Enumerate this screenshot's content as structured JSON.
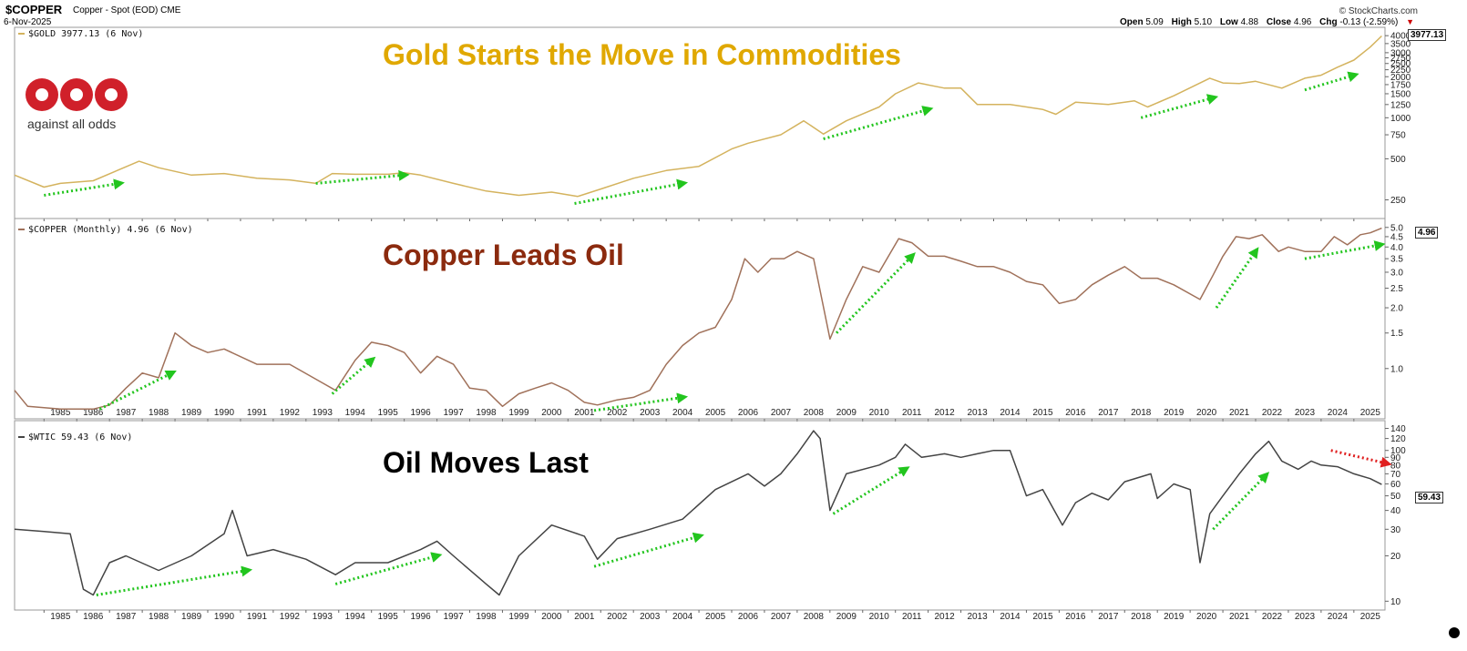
{
  "header": {
    "symbol": "$COPPER",
    "name": "Copper - Spot (EOD)",
    "exchange": "CME",
    "date": "6-Nov-2025",
    "brand": "© StockCharts.com",
    "ohlc": {
      "open_label": "Open",
      "open": "5.09",
      "high_label": "High",
      "high": "5.10",
      "low_label": "Low",
      "low": "4.88",
      "close_label": "Close",
      "close": "4.96",
      "chg_label": "Chg",
      "chg": "-0.13 (-2.59%)"
    }
  },
  "logo": {
    "text": "against all odds",
    "color": "#d0202a"
  },
  "panels": [
    {
      "id": "gold",
      "legend": "$GOLD 3977.13 (6 Nov)",
      "annotation": "Gold Starts the Move in Commodities",
      "annotation_color": "#e0a800",
      "price_tag": "3977.13",
      "line_color": "#d4b35e",
      "yticks": [
        "4000",
        "3500",
        "3000",
        "2750",
        "2500",
        "2250",
        "2000",
        "1750",
        "1500",
        "1250",
        "1000",
        "750",
        "500",
        "250"
      ]
    },
    {
      "id": "copper",
      "legend": "$COPPER (Monthly) 4.96 (6 Nov)",
      "annotation": "Copper Leads Oil",
      "annotation_color": "#8b2a0e",
      "price_tag": "4.96",
      "line_color": "#a0715a",
      "yticks": [
        "5.0",
        "4.5",
        "4.0",
        "3.5",
        "3.0",
        "2.5",
        "2.0",
        "1.5",
        "1.0"
      ]
    },
    {
      "id": "oil",
      "legend": "$WTIC 59.43 (6 Nov)",
      "annotation": "Oil Moves Last",
      "annotation_color": "#000000",
      "price_tag": "59.43",
      "line_color": "#444444",
      "yticks": [
        "140",
        "120",
        "100",
        "90",
        "80",
        "70",
        "60",
        "50",
        "40",
        "30",
        "20",
        "10"
      ]
    }
  ],
  "x_labels": [
    "1985",
    "1986",
    "1987",
    "1988",
    "1989",
    "1990",
    "1991",
    "1992",
    "1993",
    "1994",
    "1995",
    "1996",
    "1997",
    "1998",
    "1999",
    "2000",
    "2001",
    "2002",
    "2003",
    "2004",
    "2005",
    "2006",
    "2007",
    "2008",
    "2009",
    "2010",
    "2011",
    "2012",
    "2013",
    "2014",
    "2015",
    "2016",
    "2017",
    "2018",
    "2019",
    "2020",
    "2021",
    "2022",
    "2023",
    "2024",
    "2025"
  ],
  "chart_data": [
    {
      "type": "line",
      "title": "$GOLD",
      "log_scale": true,
      "ylim": [
        200,
        4200
      ],
      "series": [
        {
          "name": "$GOLD",
          "x": [
            1984.1,
            1985.0,
            1985.5,
            1986.5,
            1987.9,
            1988.5,
            1989.5,
            1990.5,
            1991.5,
            1992.5,
            1993.3,
            1993.8,
            1994.5,
            1995.5,
            1996.0,
            1996.5,
            1997.5,
            1998.5,
            1999.5,
            2000.5,
            2001.3,
            2002.0,
            2003.0,
            2004.0,
            2005.0,
            2006.0,
            2006.5,
            2007.5,
            2008.2,
            2008.8,
            2009.5,
            2010.5,
            2011.0,
            2011.7,
            2012.5,
            2013.0,
            2013.5,
            2014.5,
            2015.5,
            2015.9,
            2016.5,
            2017.5,
            2018.3,
            2018.7,
            2019.5,
            2020.6,
            2021.0,
            2021.5,
            2022.0,
            2022.8,
            2023.5,
            2024.0,
            2024.5,
            2025.0,
            2025.5,
            2025.85
          ],
          "values": [
            380,
            310,
            330,
            345,
            480,
            430,
            380,
            390,
            360,
            350,
            330,
            390,
            385,
            385,
            395,
            380,
            330,
            290,
            270,
            285,
            265,
            300,
            360,
            410,
            440,
            590,
            650,
            750,
            950,
            760,
            950,
            1200,
            1500,
            1800,
            1650,
            1650,
            1250,
            1250,
            1150,
            1060,
            1300,
            1250,
            1330,
            1200,
            1450,
            1950,
            1800,
            1780,
            1850,
            1650,
            1950,
            2050,
            2350,
            2650,
            3300,
            3977
          ]
        }
      ]
    },
    {
      "type": "line",
      "title": "$COPPER (Monthly)",
      "log_scale": true,
      "ylim": [
        0.6,
        5.2
      ],
      "series": [
        {
          "name": "$COPPER (Monthly)",
          "x": [
            1984.1,
            1984.5,
            1985.5,
            1986.5,
            1987.0,
            1987.5,
            1988.0,
            1988.5,
            1989.0,
            1989.5,
            1990.0,
            1990.5,
            1991.5,
            1992.5,
            1993.5,
            1993.9,
            1994.5,
            1995.0,
            1995.5,
            1996.0,
            1996.5,
            1997.0,
            1997.5,
            1998.0,
            1998.5,
            1999.0,
            1999.5,
            2000.0,
            2000.5,
            2001.0,
            2001.5,
            2001.9,
            2002.5,
            2003.0,
            2003.5,
            2004.0,
            2004.5,
            2005.0,
            2005.5,
            2006.0,
            2006.4,
            2006.8,
            2007.2,
            2007.6,
            2008.0,
            2008.5,
            2009.0,
            2009.5,
            2010.0,
            2010.5,
            2011.1,
            2011.5,
            2012.0,
            2012.5,
            2013.0,
            2013.5,
            2014.0,
            2014.5,
            2015.0,
            2015.5,
            2016.0,
            2016.5,
            2017.0,
            2017.5,
            2018.0,
            2018.5,
            2019.0,
            2019.5,
            2020.3,
            2020.7,
            2021.0,
            2021.4,
            2021.8,
            2022.2,
            2022.7,
            2023.0,
            2023.5,
            2024.0,
            2024.4,
            2024.8,
            2025.2,
            2025.5,
            2025.85
          ],
          "values": [
            0.78,
            0.65,
            0.63,
            0.63,
            0.66,
            0.8,
            0.95,
            0.9,
            1.5,
            1.3,
            1.2,
            1.25,
            1.05,
            1.05,
            0.85,
            0.78,
            1.1,
            1.35,
            1.3,
            1.2,
            0.95,
            1.15,
            1.05,
            0.8,
            0.78,
            0.65,
            0.75,
            0.8,
            0.85,
            0.78,
            0.68,
            0.66,
            0.7,
            0.72,
            0.78,
            1.05,
            1.3,
            1.5,
            1.6,
            2.2,
            3.5,
            3.0,
            3.5,
            3.5,
            3.8,
            3.5,
            1.4,
            2.2,
            3.2,
            3.0,
            4.4,
            4.2,
            3.6,
            3.6,
            3.4,
            3.2,
            3.2,
            3.0,
            2.7,
            2.6,
            2.1,
            2.2,
            2.6,
            2.9,
            3.2,
            2.8,
            2.8,
            2.6,
            2.2,
            2.9,
            3.6,
            4.5,
            4.4,
            4.6,
            3.8,
            4.0,
            3.8,
            3.8,
            4.5,
            4.1,
            4.6,
            4.7,
            4.96
          ]
        }
      ]
    },
    {
      "type": "line",
      "title": "$WTIC",
      "log_scale": true,
      "ylim": [
        9.5,
        145
      ],
      "series": [
        {
          "name": "$WTIC",
          "x": [
            1984.1,
            1985.0,
            1985.8,
            1986.2,
            1986.5,
            1987.0,
            1987.5,
            1988.5,
            1989.5,
            1990.5,
            1990.75,
            1991.2,
            1992.0,
            1993.0,
            1993.9,
            1994.5,
            1995.5,
            1996.5,
            1997.0,
            1997.5,
            1998.5,
            1998.9,
            1999.5,
            2000.5,
            2001.5,
            2001.9,
            2002.5,
            2003.5,
            2004.5,
            2005.5,
            2006.5,
            2007.0,
            2007.5,
            2008.0,
            2008.5,
            2008.7,
            2009.0,
            2009.5,
            2010.5,
            2011.0,
            2011.3,
            2011.8,
            2012.5,
            2013.0,
            2013.5,
            2014.0,
            2014.5,
            2015.0,
            2015.5,
            2016.1,
            2016.5,
            2017.0,
            2017.5,
            2018.0,
            2018.8,
            2019.0,
            2019.5,
            2020.0,
            2020.3,
            2020.6,
            2021.0,
            2021.5,
            2022.0,
            2022.4,
            2022.8,
            2023.3,
            2023.7,
            2024.0,
            2024.5,
            2025.0,
            2025.5,
            2025.85
          ],
          "values": [
            30,
            29,
            28,
            12,
            11,
            18,
            20,
            16,
            20,
            28,
            40,
            20,
            22,
            19,
            15,
            18,
            18,
            22,
            25,
            20,
            13,
            11,
            20,
            32,
            27,
            19,
            26,
            30,
            35,
            55,
            70,
            58,
            70,
            95,
            135,
            120,
            40,
            70,
            80,
            90,
            110,
            90,
            95,
            90,
            95,
            100,
            100,
            50,
            55,
            32,
            45,
            52,
            47,
            62,
            70,
            48,
            60,
            55,
            18,
            38,
            50,
            70,
            95,
            115,
            85,
            75,
            85,
            80,
            78,
            70,
            65,
            59.43
          ]
        }
      ]
    }
  ]
}
